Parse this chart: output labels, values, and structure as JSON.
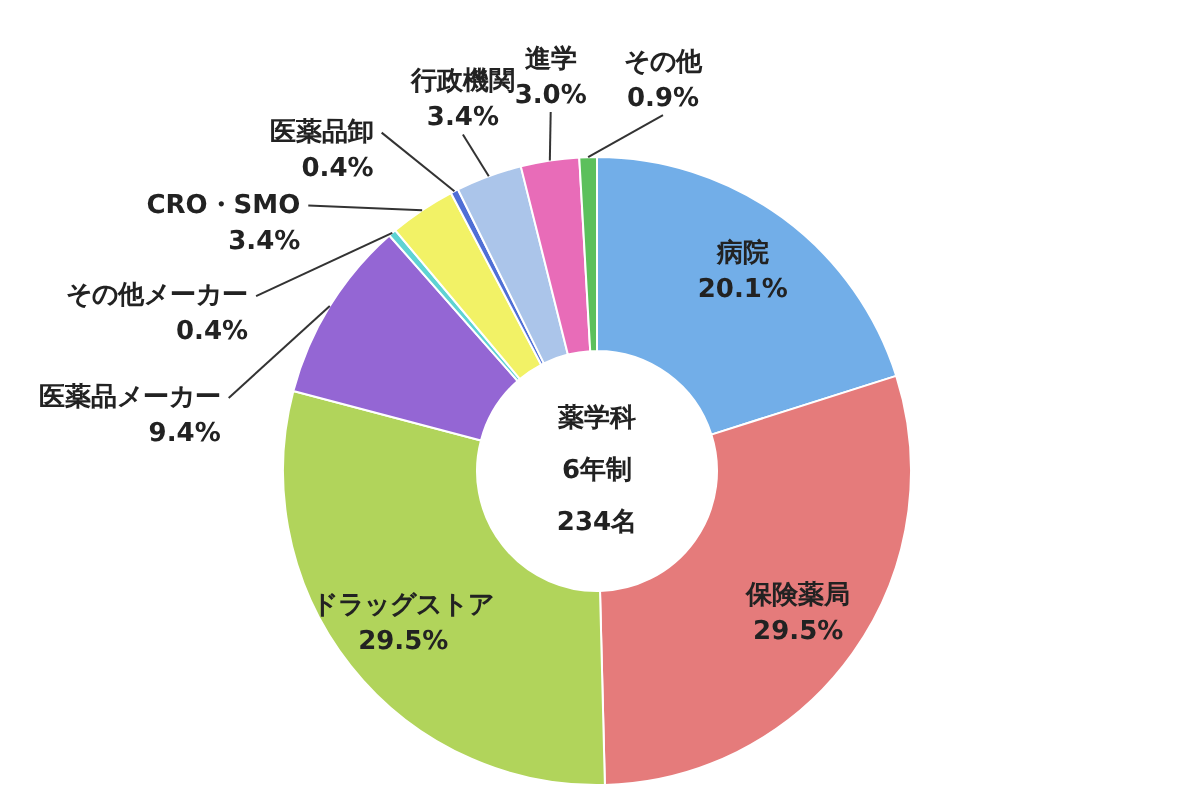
{
  "chart_data": {
    "type": "donut",
    "categories": [
      "病院",
      "保険薬局",
      "ドラッグストア",
      "医薬品メーカー",
      "その他メーカー",
      "CRO・SMO",
      "医薬品卸",
      "行政機関",
      "進学",
      "その他"
    ],
    "values": [
      20.1,
      29.5,
      29.5,
      9.4,
      0.4,
      3.4,
      0.4,
      3.4,
      3.0,
      0.9
    ],
    "value_labels": [
      "20.1%",
      "29.5%",
      "29.5%",
      "9.4%",
      "0.4%",
      "3.4%",
      "0.4%",
      "3.4%",
      "3.0%",
      "0.9%"
    ],
    "colors": [
      "#72aee8",
      "#e57b7b",
      "#b1d45b",
      "#9466d4",
      "#5ed3d3",
      "#f2f266",
      "#4f6fd6",
      "#abc5ea",
      "#e86cb8",
      "#5cc05c"
    ],
    "annotations": [
      "薬学科",
      "6年制",
      "234名"
    ]
  }
}
